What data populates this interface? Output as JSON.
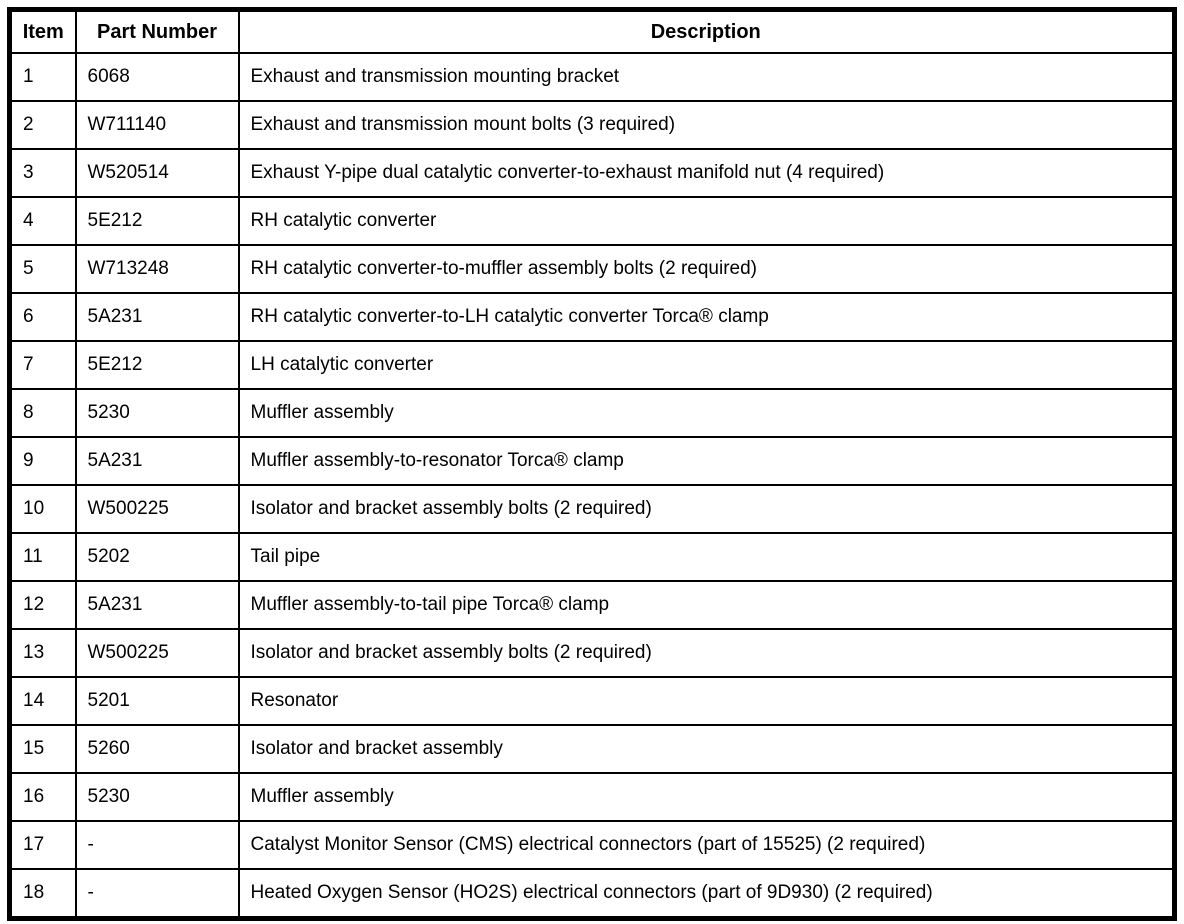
{
  "table": {
    "columns": [
      "Item",
      "Part Number",
      "Description"
    ],
    "rows": [
      {
        "item": "1",
        "part_number": "6068",
        "description": "Exhaust and transmission mounting bracket"
      },
      {
        "item": "2",
        "part_number": "W711140",
        "description": "Exhaust and transmission mount bolts (3 required)"
      },
      {
        "item": "3",
        "part_number": "W520514",
        "description": "Exhaust Y-pipe dual catalytic converter-to-exhaust manifold nut (4 required)"
      },
      {
        "item": "4",
        "part_number": "5E212",
        "description": "RH catalytic converter"
      },
      {
        "item": "5",
        "part_number": "W713248",
        "description": "RH catalytic converter-to-muffler assembly bolts (2 required)"
      },
      {
        "item": "6",
        "part_number": "5A231",
        "description": "RH catalytic converter-to-LH catalytic converter Torca® clamp"
      },
      {
        "item": "7",
        "part_number": "5E212",
        "description": "LH catalytic converter"
      },
      {
        "item": "8",
        "part_number": "5230",
        "description": "Muffler assembly"
      },
      {
        "item": "9",
        "part_number": "5A231",
        "description": "Muffler assembly-to-resonator Torca® clamp"
      },
      {
        "item": "10",
        "part_number": "W500225",
        "description": "Isolator and bracket assembly bolts (2 required)"
      },
      {
        "item": "11",
        "part_number": "5202",
        "description": "Tail pipe"
      },
      {
        "item": "12",
        "part_number": "5A231",
        "description": "Muffler assembly-to-tail pipe Torca® clamp"
      },
      {
        "item": "13",
        "part_number": "W500225",
        "description": "Isolator and bracket assembly bolts (2 required)"
      },
      {
        "item": "14",
        "part_number": "5201",
        "description": "Resonator"
      },
      {
        "item": "15",
        "part_number": "5260",
        "description": "Isolator and bracket assembly"
      },
      {
        "item": "16",
        "part_number": "5230",
        "description": "Muffler assembly"
      },
      {
        "item": "17",
        "part_number": "-",
        "description": "Catalyst Monitor Sensor (CMS) electrical connectors (part of 15525) (2 required)"
      },
      {
        "item": "18",
        "part_number": "-",
        "description": "Heated Oxygen Sensor (HO2S) electrical connectors (part of 9D930) (2 required)"
      }
    ]
  },
  "colors": {
    "border": "#000000",
    "text": "#000000",
    "background": "#ffffff"
  }
}
